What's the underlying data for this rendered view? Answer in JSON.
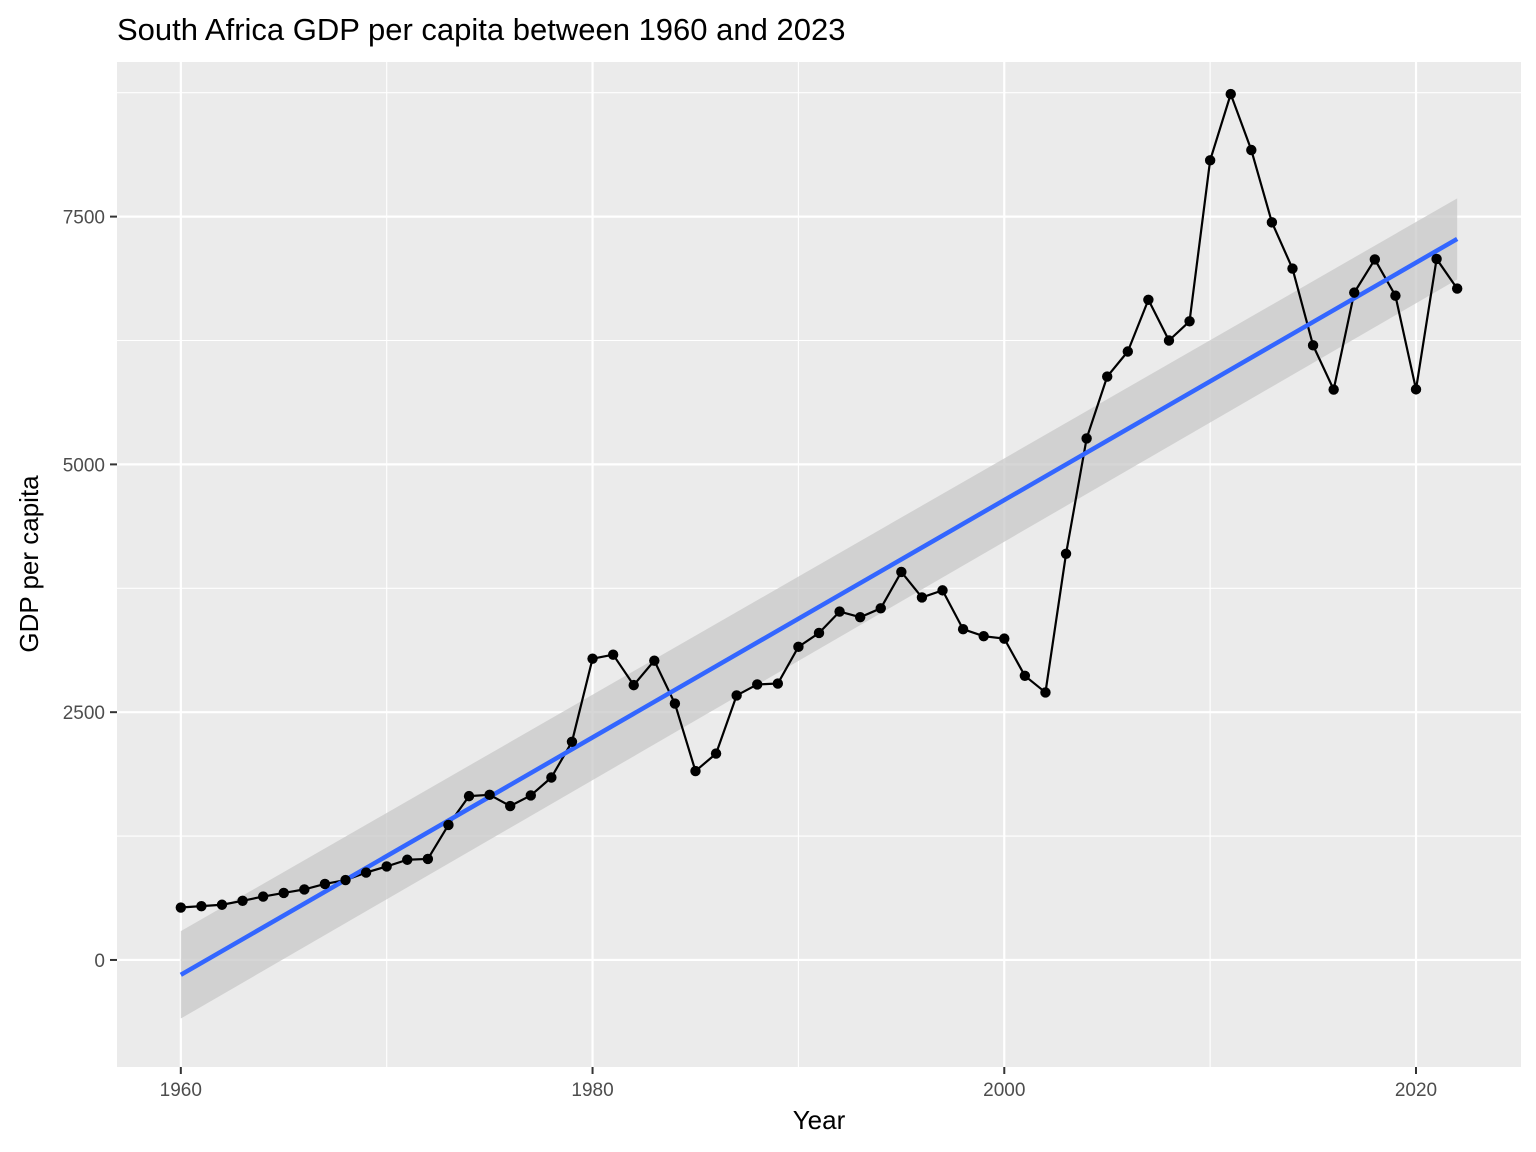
{
  "chart_data": {
    "type": "line",
    "title": "South Africa GDP per capita between 1960 and 2023",
    "xlabel": "Year",
    "ylabel": "GDP per capita",
    "x_ticks": [
      1960,
      1980,
      2000,
      2020
    ],
    "y_ticks": [
      0,
      2500,
      5000,
      7500
    ],
    "xlim": [
      1956.9,
      2025.1
    ],
    "ylim": [
      -1080,
      9060
    ],
    "grid": true,
    "legend": "none",
    "colors": {
      "panel_background": "#ebebeb",
      "grid_major": "#ffffff",
      "line": "#000000",
      "points": "#000000",
      "trend_line": "#3366ff",
      "confidence_band": "#c8c8c8"
    },
    "series": [
      {
        "x": [
          1960,
          1961,
          1962,
          1963,
          1964,
          1965,
          1966,
          1967,
          1968,
          1969,
          1970,
          1971,
          1972,
          1973,
          1974,
          1975,
          1976,
          1977,
          1978,
          1979,
          1980,
          1981,
          1982,
          1983,
          1984,
          1985,
          1986,
          1987,
          1988,
          1989,
          1990,
          1991,
          1992,
          1993,
          1994,
          1995,
          1996,
          1997,
          1998,
          1999,
          2000,
          2001,
          2002,
          2003,
          2004,
          2005,
          2006,
          2007,
          2008,
          2009,
          2010,
          2011,
          2012,
          2013,
          2014,
          2015,
          2016,
          2017,
          2018,
          2019,
          2020,
          2021,
          2022
        ],
        "values": [
          529,
          543,
          557,
          597,
          640,
          676,
          712,
          767,
          806,
          882,
          944,
          1011,
          1019,
          1362,
          1653,
          1666,
          1553,
          1660,
          1841,
          2201,
          3040,
          3080,
          2773,
          3020,
          2587,
          1906,
          2082,
          2669,
          2780,
          2789,
          3159,
          3299,
          3515,
          3458,
          3548,
          3915,
          3658,
          3729,
          3337,
          3267,
          3242,
          2867,
          2699,
          4098,
          5262,
          5886,
          6139,
          6661,
          6250,
          6444,
          8068,
          8736,
          8172,
          7442,
          6976,
          6201,
          5755,
          6733,
          7068,
          6702,
          5757,
          7073,
          6774
        ]
      }
    ],
    "trend": {
      "method": "linear",
      "x": [
        1960,
        2022
      ],
      "values": [
        -150,
        7275
      ],
      "ci_lower": [
        -591,
        6866
      ],
      "ci_upper": [
        291,
        7684
      ]
    }
  }
}
